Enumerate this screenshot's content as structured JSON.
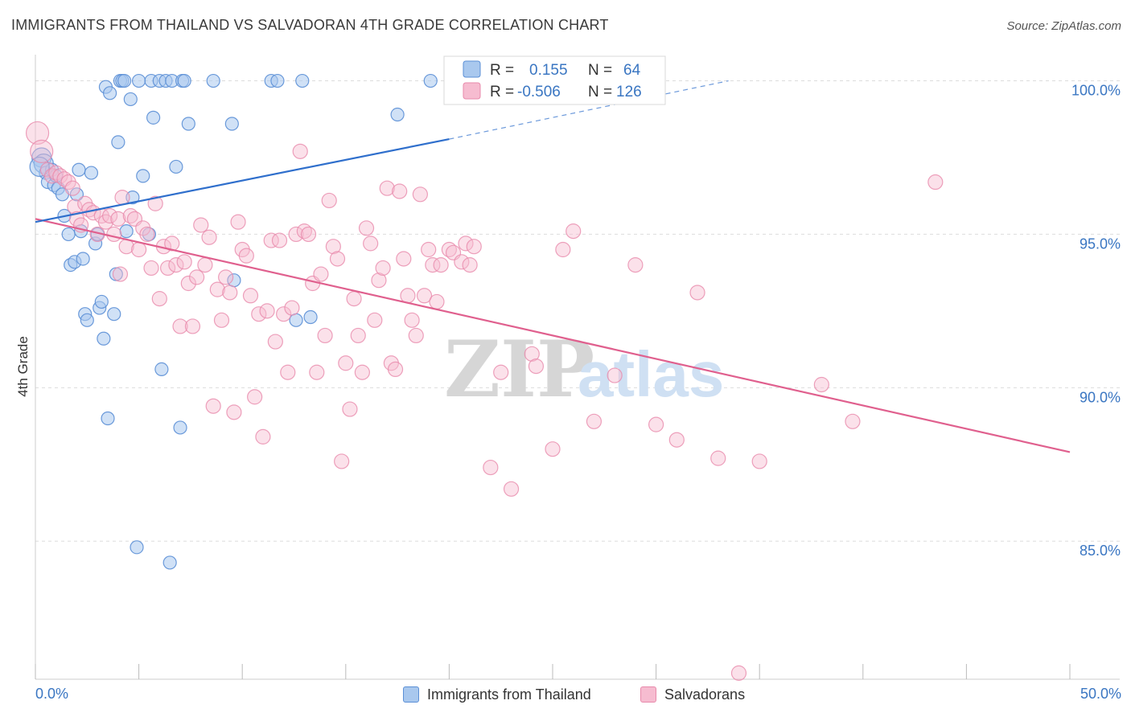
{
  "title": "IMMIGRANTS FROM THAILAND VS SALVADORAN 4TH GRADE CORRELATION CHART",
  "source": "Source: ZipAtlas.com",
  "watermark": {
    "zip": "ZIP",
    "atlas": "atlas"
  },
  "colors": {
    "blue_fill": "#a9c8ee",
    "blue_stroke": "#5b8fd6",
    "blue_line": "#2f6fcc",
    "pink_fill": "#f6bcd0",
    "pink_stroke": "#e88aab",
    "pink_line": "#e0608e",
    "grid": "#dddddd",
    "axis_label": "#3a76c2"
  },
  "legend": {
    "rows": [
      {
        "r_label": "R =",
        "r_value": "0.155",
        "n_label": "N =",
        "n_value": "64"
      },
      {
        "r_label": "R =",
        "r_value": "-0.506",
        "n_label": "N =",
        "n_value": "126"
      }
    ]
  },
  "bottom_legend": {
    "series_a": "Immigrants from Thailand",
    "series_b": "Salvadorans"
  },
  "chart_data": {
    "type": "scatter",
    "xlabel": "",
    "ylabel": "4th Grade",
    "xlim": [
      0,
      50
    ],
    "ylim": [
      80.5,
      100.8
    ],
    "x_tick_labels": [
      "0.0%",
      "50.0%"
    ],
    "y_ticks": [
      85,
      90,
      95,
      100
    ],
    "y_tick_labels": [
      "85.0%",
      "90.0%",
      "95.0%",
      "100.0%"
    ],
    "grid": true,
    "series": [
      {
        "name": "Immigrants from Thailand",
        "R": 0.155,
        "N": 64,
        "trend": {
          "x0": 0,
          "y0": 95.4,
          "x1": 20,
          "y1": 98.1,
          "dashed_to_x": 33.5,
          "dashed_to_y": 100.0
        },
        "points": [
          [
            0.3,
            97.5
          ],
          [
            0.4,
            97.3
          ],
          [
            0.5,
            97.0
          ],
          [
            0.6,
            96.7
          ],
          [
            0.8,
            97.1
          ],
          [
            0.9,
            96.6
          ],
          [
            1.0,
            96.9
          ],
          [
            1.1,
            96.5
          ],
          [
            1.3,
            96.3
          ],
          [
            1.4,
            95.6
          ],
          [
            1.6,
            95.0
          ],
          [
            1.7,
            94.0
          ],
          [
            1.9,
            94.1
          ],
          [
            2.0,
            96.3
          ],
          [
            2.1,
            97.1
          ],
          [
            2.2,
            95.1
          ],
          [
            2.3,
            94.2
          ],
          [
            2.4,
            92.4
          ],
          [
            2.5,
            92.2
          ],
          [
            2.7,
            97.0
          ],
          [
            2.9,
            94.7
          ],
          [
            3.0,
            95.0
          ],
          [
            3.1,
            92.6
          ],
          [
            3.2,
            92.8
          ],
          [
            3.3,
            91.6
          ],
          [
            3.4,
            99.8
          ],
          [
            3.5,
            89.0
          ],
          [
            3.6,
            99.6
          ],
          [
            3.8,
            92.4
          ],
          [
            3.9,
            93.7
          ],
          [
            4.0,
            98.0
          ],
          [
            4.1,
            100.0
          ],
          [
            4.2,
            100.0
          ],
          [
            4.3,
            100.0
          ],
          [
            4.4,
            95.1
          ],
          [
            4.6,
            99.4
          ],
          [
            4.7,
            96.2
          ],
          [
            4.9,
            84.8
          ],
          [
            5.0,
            100.0
          ],
          [
            5.2,
            96.9
          ],
          [
            5.5,
            95.0
          ],
          [
            5.6,
            100.0
          ],
          [
            5.7,
            98.8
          ],
          [
            6.0,
            100.0
          ],
          [
            6.1,
            90.6
          ],
          [
            6.3,
            100.0
          ],
          [
            6.5,
            84.3
          ],
          [
            6.6,
            100.0
          ],
          [
            6.8,
            97.2
          ],
          [
            7.0,
            88.7
          ],
          [
            7.1,
            100.0
          ],
          [
            7.2,
            100.0
          ],
          [
            7.4,
            98.6
          ],
          [
            8.6,
            100.0
          ],
          [
            9.5,
            98.6
          ],
          [
            9.6,
            93.5
          ],
          [
            11.4,
            100.0
          ],
          [
            11.7,
            100.0
          ],
          [
            12.6,
            92.2
          ],
          [
            12.9,
            100.0
          ],
          [
            13.3,
            92.3
          ],
          [
            17.5,
            98.9
          ],
          [
            19.1,
            100.0
          ],
          [
            0.2,
            97.2
          ]
        ]
      },
      {
        "name": "Salvadorans",
        "R": -0.506,
        "N": 126,
        "trend": {
          "x0": 0,
          "y0": 95.5,
          "x1": 50,
          "y1": 87.9
        },
        "points": [
          [
            0.1,
            98.3
          ],
          [
            0.3,
            97.7
          ],
          [
            0.6,
            97.1
          ],
          [
            0.8,
            96.9
          ],
          [
            1.0,
            97.0
          ],
          [
            1.2,
            96.9
          ],
          [
            1.4,
            96.8
          ],
          [
            1.6,
            96.7
          ],
          [
            1.8,
            96.5
          ],
          [
            1.9,
            95.9
          ],
          [
            2.0,
            95.5
          ],
          [
            2.2,
            95.3
          ],
          [
            2.4,
            96.0
          ],
          [
            2.6,
            95.8
          ],
          [
            2.8,
            95.7
          ],
          [
            3.0,
            95.0
          ],
          [
            3.2,
            95.6
          ],
          [
            3.4,
            95.4
          ],
          [
            3.6,
            95.6
          ],
          [
            3.8,
            95.0
          ],
          [
            4.0,
            95.5
          ],
          [
            4.1,
            93.7
          ],
          [
            4.2,
            96.2
          ],
          [
            4.4,
            94.6
          ],
          [
            4.6,
            95.6
          ],
          [
            4.8,
            95.5
          ],
          [
            5.0,
            94.5
          ],
          [
            5.2,
            95.2
          ],
          [
            5.4,
            95.0
          ],
          [
            5.6,
            93.9
          ],
          [
            5.8,
            96.0
          ],
          [
            6.0,
            92.9
          ],
          [
            6.2,
            94.6
          ],
          [
            6.4,
            93.9
          ],
          [
            6.6,
            94.7
          ],
          [
            6.8,
            94.0
          ],
          [
            7.0,
            92.0
          ],
          [
            7.2,
            94.1
          ],
          [
            7.4,
            93.4
          ],
          [
            7.6,
            92.0
          ],
          [
            7.8,
            93.6
          ],
          [
            8.0,
            95.3
          ],
          [
            8.2,
            94.0
          ],
          [
            8.4,
            94.9
          ],
          [
            8.6,
            89.4
          ],
          [
            8.8,
            93.2
          ],
          [
            9.0,
            92.2
          ],
          [
            9.2,
            93.6
          ],
          [
            9.4,
            93.1
          ],
          [
            9.6,
            89.2
          ],
          [
            9.8,
            95.4
          ],
          [
            10.0,
            94.5
          ],
          [
            10.2,
            94.3
          ],
          [
            10.4,
            93.0
          ],
          [
            10.6,
            89.7
          ],
          [
            10.8,
            92.4
          ],
          [
            11.0,
            88.4
          ],
          [
            11.2,
            92.5
          ],
          [
            11.4,
            94.8
          ],
          [
            11.6,
            91.5
          ],
          [
            11.8,
            94.8
          ],
          [
            12.0,
            92.4
          ],
          [
            12.2,
            90.5
          ],
          [
            12.4,
            92.6
          ],
          [
            12.6,
            95.0
          ],
          [
            12.8,
            97.7
          ],
          [
            13.0,
            95.1
          ],
          [
            13.2,
            95.0
          ],
          [
            13.4,
            93.4
          ],
          [
            13.6,
            90.5
          ],
          [
            13.8,
            93.7
          ],
          [
            14.0,
            91.7
          ],
          [
            14.2,
            96.1
          ],
          [
            14.4,
            94.6
          ],
          [
            14.6,
            94.2
          ],
          [
            14.8,
            87.6
          ],
          [
            15.0,
            90.8
          ],
          [
            15.2,
            89.3
          ],
          [
            15.4,
            92.9
          ],
          [
            15.6,
            91.7
          ],
          [
            15.8,
            90.5
          ],
          [
            16.0,
            95.2
          ],
          [
            16.2,
            94.7
          ],
          [
            16.4,
            92.2
          ],
          [
            16.6,
            93.5
          ],
          [
            16.8,
            93.9
          ],
          [
            17.0,
            96.5
          ],
          [
            17.2,
            90.8
          ],
          [
            17.4,
            90.6
          ],
          [
            17.6,
            96.4
          ],
          [
            17.8,
            94.2
          ],
          [
            18.0,
            93.0
          ],
          [
            18.2,
            92.2
          ],
          [
            18.4,
            91.7
          ],
          [
            18.6,
            96.3
          ],
          [
            18.8,
            93.0
          ],
          [
            19.0,
            94.5
          ],
          [
            19.2,
            94.0
          ],
          [
            19.4,
            92.8
          ],
          [
            19.6,
            94.0
          ],
          [
            20.0,
            94.5
          ],
          [
            20.2,
            94.4
          ],
          [
            20.6,
            94.1
          ],
          [
            20.8,
            94.7
          ],
          [
            21.0,
            94.0
          ],
          [
            21.2,
            94.6
          ],
          [
            22.0,
            87.4
          ],
          [
            22.5,
            90.5
          ],
          [
            23.0,
            86.7
          ],
          [
            24.0,
            91.1
          ],
          [
            24.2,
            90.7
          ],
          [
            25.0,
            88.0
          ],
          [
            25.5,
            94.5
          ],
          [
            26.0,
            95.1
          ],
          [
            27.0,
            88.9
          ],
          [
            28.0,
            90.4
          ],
          [
            29.0,
            94.0
          ],
          [
            30.0,
            88.8
          ],
          [
            31.0,
            88.3
          ],
          [
            32.0,
            93.1
          ],
          [
            33.0,
            87.7
          ],
          [
            34.0,
            80.7
          ],
          [
            35.0,
            87.6
          ],
          [
            38.0,
            90.1
          ],
          [
            39.5,
            88.9
          ],
          [
            43.5,
            96.7
          ]
        ]
      }
    ]
  }
}
